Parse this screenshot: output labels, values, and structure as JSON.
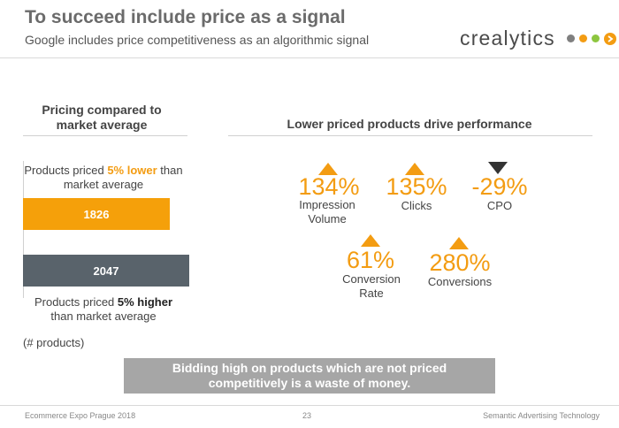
{
  "header": {
    "title": "To succeed include price as a signal",
    "subtitle": "Google includes price competitiveness as an algorithmic signal",
    "logo_text": "crealytics",
    "logo_colors": [
      "#7f7f7f",
      "#f39c12",
      "#8dc63f"
    ]
  },
  "left": {
    "heading_line1": "Pricing compared to",
    "heading_line2": "market average",
    "lower": {
      "label_pre": "Products priced ",
      "label_highlight": "5% lower",
      "label_post": " than",
      "label_line2": "market average",
      "value": "1826",
      "color": "#f5a00a"
    },
    "higher": {
      "label_pre": "Products priced ",
      "label_highlight": "5% higher",
      "label_line2": "than market average",
      "value": "2047",
      "color": "#59636b"
    },
    "unit_note": "(# products)"
  },
  "right": {
    "heading": "Lower priced products drive performance",
    "metrics": [
      {
        "value": "134%",
        "label_line1": "Impression",
        "label_line2": "Volume",
        "direction": "up"
      },
      {
        "value": "135%",
        "label_line1": "Clicks",
        "label_line2": "",
        "direction": "up"
      },
      {
        "value": "-29%",
        "label_line1": "CPO",
        "label_line2": "",
        "direction": "down"
      },
      {
        "value": "61%",
        "label_line1": "Conversion",
        "label_line2": "Rate",
        "direction": "up"
      },
      {
        "value": "280%",
        "label_line1": "Conversions",
        "label_line2": "",
        "direction": "up"
      }
    ]
  },
  "banner": {
    "line1": "Bidding high on products which are not priced",
    "line2": "competitively is a waste of money."
  },
  "footer": {
    "left": "Ecommerce Expo Prague 2018",
    "page": "23",
    "right": "Semantic Advertising Technology"
  }
}
